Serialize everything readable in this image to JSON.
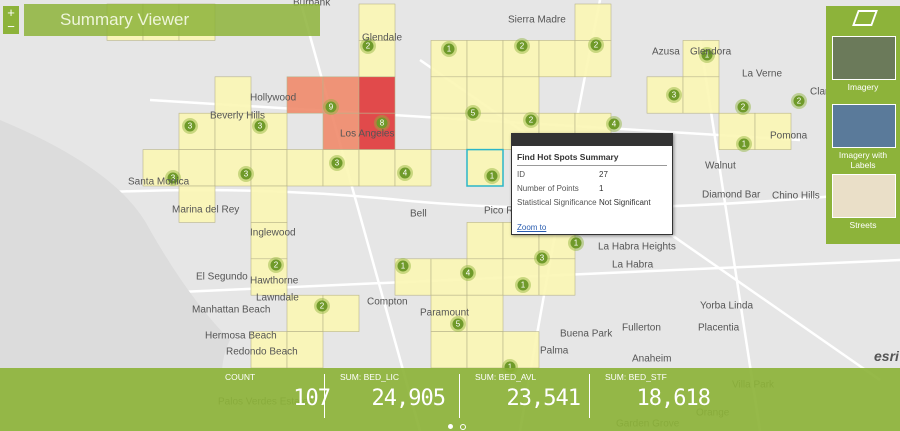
{
  "header": {
    "title": "Summary Viewer"
  },
  "popup": {
    "title": "Find Hot Spots Summary",
    "rows": [
      [
        "ID",
        "27"
      ],
      [
        "Number of Points",
        "1"
      ],
      [
        "Statistical Significance",
        "Not Significant"
      ]
    ],
    "link": "Zoom to"
  },
  "basemaps": [
    "Imagery",
    "Imagery with Labels",
    "Streets"
  ],
  "stats": [
    {
      "label": "COUNT",
      "value": "107"
    },
    {
      "label": "SUM: BED_LIC",
      "value": "24,905"
    },
    {
      "label": "SUM: BED_AVL",
      "value": "23,541"
    },
    {
      "label": "SUM: BED_STF",
      "value": "18,618"
    }
  ],
  "clusters": [
    "2",
    "1",
    "2",
    "2",
    "1",
    "3",
    "2",
    "2",
    "1",
    "9",
    "8",
    "5",
    "2",
    "4",
    "3",
    "3",
    "3",
    "3",
    "4",
    "1",
    "3",
    "2",
    "1",
    "4",
    "3",
    "1",
    "1",
    "2",
    "5",
    "1"
  ],
  "places": [
    "Burbank",
    "Glendale",
    "Sierra Madre",
    "Azusa",
    "Glendora",
    "La Verne",
    "Claremont",
    "Pomona",
    "Hollywood",
    "Beverly Hills",
    "Los Angeles",
    "Santa Monica",
    "Marina del Rey",
    "Inglewood",
    "Bell",
    "Pico Rivera",
    "Walnut",
    "Diamond Bar",
    "Chino Hills",
    "La Habra Heights",
    "La Habra",
    "El Segundo",
    "Hawthorne",
    "Manhattan Beach",
    "Lawndale",
    "Compton",
    "Hermosa Beach",
    "Redondo Beach",
    "Paramount",
    "Buena Park",
    "Fullerton",
    "Placentia",
    "Yorba Linda",
    "Palma",
    "Anaheim",
    "Villa Park",
    "Orange",
    "Garden Grove",
    "Palos Verdes Estates"
  ],
  "logo": "esri"
}
